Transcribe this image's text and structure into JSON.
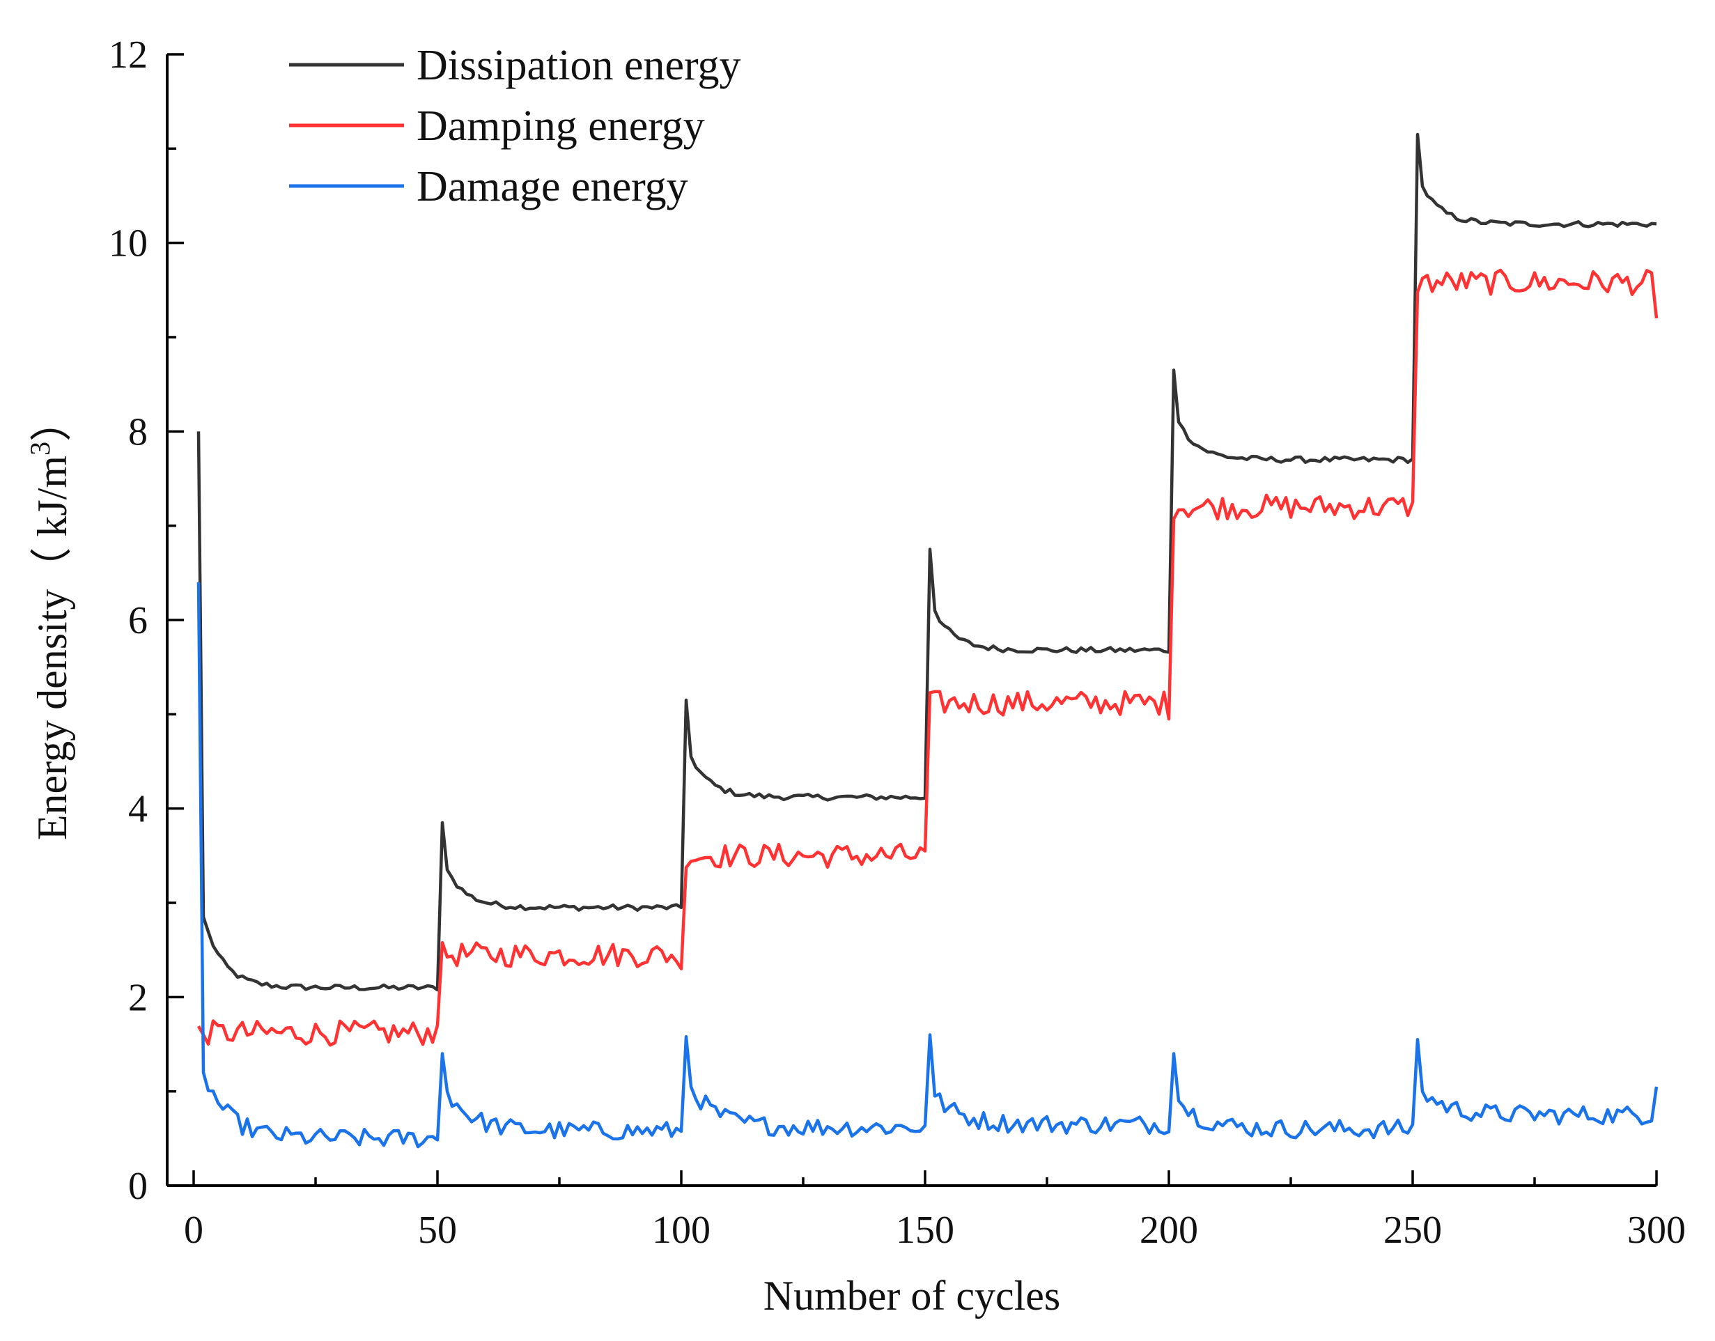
{
  "chart_data": {
    "type": "line",
    "title": "",
    "xlabel": "Number of cycles",
    "ylabel": {
      "main": "Energy density（ kJ/m",
      "superscript": "3",
      "close": "）"
    },
    "xlim": [
      0,
      300
    ],
    "ylim": [
      0,
      12
    ],
    "x_ticks": [
      0,
      50,
      100,
      150,
      200,
      250,
      300
    ],
    "x_tick_labels": [
      "0",
      "50",
      "100",
      "150",
      "200",
      "250",
      "300"
    ],
    "y_ticks": [
      0,
      2,
      4,
      6,
      8,
      10,
      12
    ],
    "y_tick_labels": [
      "0",
      "2",
      "4",
      "6",
      "8",
      "10",
      "12"
    ],
    "grid": false,
    "legend_position": "top-left",
    "stages": [
      {
        "start": 1,
        "end": 50
      },
      {
        "start": 51,
        "end": 100
      },
      {
        "start": 101,
        "end": 150
      },
      {
        "start": 151,
        "end": 200
      },
      {
        "start": 201,
        "end": 250
      },
      {
        "start": 251,
        "end": 300
      }
    ],
    "series": [
      {
        "name": "Dissipation energy",
        "color": "#333333",
        "stage_peak": [
          8.0,
          3.85,
          5.15,
          6.75,
          8.65,
          11.15
        ],
        "stage_plateau": [
          2.1,
          2.95,
          4.12,
          5.68,
          7.7,
          10.2
        ],
        "stage_second": [
          2.85,
          3.35,
          4.55,
          6.1,
          8.1,
          10.6
        ],
        "noise": 0.03
      },
      {
        "name": "Damping energy",
        "color": "#ff3333",
        "stage_level": [
          1.62,
          2.45,
          3.5,
          5.12,
          7.2,
          9.58
        ],
        "stage_last": [
          1.7,
          2.3,
          3.55,
          4.95,
          7.25,
          9.2
        ],
        "noise": 0.13
      },
      {
        "name": "Damage energy",
        "color": "#1a73e8",
        "stage_peak": [
          6.4,
          1.4,
          1.58,
          1.6,
          1.4,
          1.55
        ],
        "stage_second": [
          1.2,
          1.0,
          1.05,
          0.95,
          0.9,
          1.0
        ],
        "stage_base": [
          0.5,
          0.58,
          0.62,
          0.65,
          0.6,
          0.75
        ],
        "end_value": 1.05,
        "noise": 0.1
      }
    ]
  }
}
